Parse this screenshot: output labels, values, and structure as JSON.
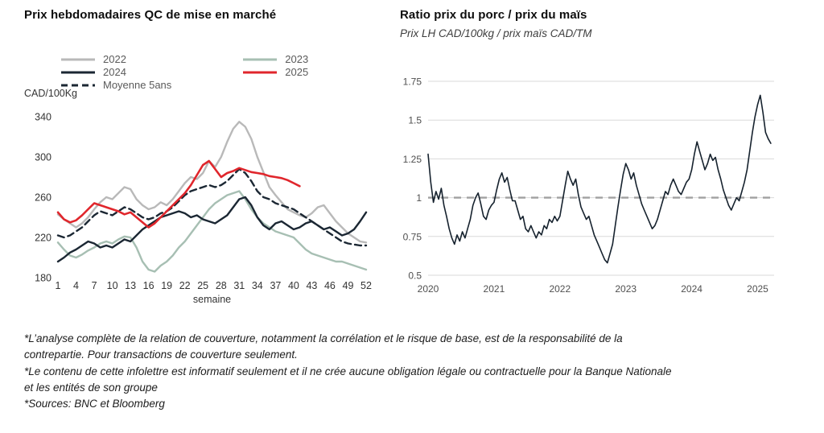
{
  "left_chart": {
    "title": "Prix hebdomadaires QC de mise en marché",
    "y_unit_label": "CAD/100Kg",
    "x_axis_label": "semaine"
  },
  "right_chart": {
    "title": "Ratio prix du porc / prix du maïs",
    "subtitle": "Prix LH CAD/100kg / prix maïs CAD/TM"
  },
  "footnotes": [
    "*L’analyse complète de la relation de couverture, notamment la corrélation et le risque de base, est de la responsabilité de la contrepartie. Pour transactions de couverture seulement.",
    "*Le contenu de cette infolettre est informatif seulement et il ne crée aucune obligation légale ou contractuelle pour la Banque Nationale et les entités de son groupe",
    "*Sources: BNC et Bloomberg"
  ],
  "colors": {
    "gray_2022": "#b9b9b9",
    "sage_2023": "#a7bfb3",
    "navy_2024": "#1b2733",
    "red_2025": "#e0262c",
    "gridline": "#dadada",
    "reference": "#a0a0a0"
  },
  "chart_data": [
    {
      "type": "line",
      "title": "Prix hebdomadaires QC de mise en marché",
      "xlabel": "semaine",
      "ylabel": "CAD/100Kg",
      "ylim": [
        180,
        340
      ],
      "yticks": [
        180,
        220,
        260,
        300,
        340
      ],
      "xlim": [
        1,
        52
      ],
      "xticks": [
        1,
        4,
        7,
        10,
        13,
        16,
        19,
        22,
        25,
        28,
        31,
        34,
        37,
        40,
        43,
        46,
        49,
        52
      ],
      "grid": false,
      "legend_position": "top",
      "legend_columns": [
        [
          "2022",
          "2024",
          "Moyenne 5ans"
        ],
        [
          "2023",
          "2025"
        ]
      ],
      "series": [
        {
          "name": "2022",
          "color": "#b9b9b9",
          "dash": null,
          "width": 2.4,
          "x_start": 1,
          "x_step": 1,
          "values": [
            243,
            238,
            234,
            230,
            234,
            240,
            248,
            255,
            260,
            258,
            264,
            270,
            268,
            258,
            252,
            248,
            250,
            255,
            252,
            258,
            266,
            274,
            280,
            278,
            284,
            296,
            290,
            300,
            315,
            328,
            335,
            330,
            318,
            300,
            285,
            270,
            262,
            255,
            248,
            245,
            242,
            240,
            244,
            250,
            252,
            244,
            236,
            230,
            224,
            220,
            216,
            215
          ]
        },
        {
          "name": "2023",
          "color": "#a7bfb3",
          "dash": null,
          "width": 2.4,
          "x_start": 1,
          "x_step": 1,
          "values": [
            215,
            208,
            202,
            200,
            203,
            207,
            210,
            214,
            216,
            214,
            218,
            221,
            220,
            210,
            196,
            188,
            186,
            192,
            196,
            202,
            210,
            216,
            224,
            232,
            240,
            248,
            254,
            258,
            262,
            264,
            266,
            258,
            248,
            240,
            234,
            230,
            226,
            224,
            222,
            220,
            214,
            208,
            204,
            202,
            200,
            198,
            196,
            196,
            194,
            192,
            190,
            188
          ]
        },
        {
          "name": "Moyenne 5ans",
          "color": "#1b2733",
          "dash": "8,5",
          "width": 2.4,
          "x_start": 1,
          "x_step": 1,
          "values": [
            222,
            220,
            222,
            226,
            230,
            236,
            242,
            246,
            244,
            242,
            246,
            250,
            248,
            244,
            240,
            238,
            240,
            244,
            246,
            250,
            256,
            262,
            266,
            268,
            270,
            272,
            270,
            272,
            276,
            282,
            288,
            284,
            276,
            266,
            260,
            258,
            254,
            252,
            250,
            248,
            244,
            240,
            236,
            232,
            228,
            224,
            220,
            216,
            214,
            213,
            212,
            212
          ]
        },
        {
          "name": "2024",
          "color": "#1b2733",
          "dash": null,
          "width": 2.4,
          "x_start": 1,
          "x_step": 1,
          "values": [
            196,
            200,
            205,
            208,
            212,
            216,
            214,
            210,
            212,
            210,
            214,
            218,
            216,
            222,
            228,
            232,
            236,
            240,
            242,
            244,
            246,
            244,
            240,
            242,
            238,
            236,
            234,
            238,
            242,
            250,
            258,
            260,
            252,
            240,
            232,
            228,
            234,
            236,
            232,
            228,
            230,
            234,
            236,
            232,
            228,
            230,
            226,
            222,
            224,
            228,
            236,
            245
          ]
        },
        {
          "name": "2025",
          "color": "#e0262c",
          "dash": null,
          "width": 2.6,
          "x_start": 1,
          "x_step": 1,
          "values": [
            245,
            238,
            235,
            237,
            242,
            248,
            254,
            252,
            250,
            248,
            246,
            243,
            245,
            240,
            235,
            230,
            234,
            240,
            246,
            252,
            258,
            264,
            272,
            282,
            292,
            296,
            288,
            280,
            284,
            286,
            289,
            287,
            285,
            284,
            283,
            281,
            280,
            279,
            277,
            274,
            271
          ]
        }
      ]
    },
    {
      "type": "line",
      "title": "Ratio prix du porc / prix du maïs",
      "subtitle": "Prix LH CAD/100kg / prix maïs CAD/TM",
      "xlabel": "",
      "ylabel": "",
      "ylim": [
        0.5,
        1.75
      ],
      "yticks": [
        0.5,
        0.75,
        1,
        1.25,
        1.5,
        1.75
      ],
      "xlim": [
        2020,
        2025.25
      ],
      "xticks": [
        2020,
        2021,
        2022,
        2023,
        2024,
        2025
      ],
      "grid": true,
      "legend_position": "none",
      "reference_line": {
        "y": 1,
        "color": "#a0a0a0",
        "dash": "9,7"
      },
      "series": [
        {
          "name": "ratio porc/maïs",
          "color": "#16222e",
          "dash": null,
          "width": 1.6,
          "x_start": 2020,
          "x_step": 0.04,
          "values": [
            1.28,
            1.1,
            0.97,
            1.04,
            0.99,
            1.06,
            0.95,
            0.88,
            0.8,
            0.74,
            0.7,
            0.76,
            0.72,
            0.78,
            0.74,
            0.8,
            0.86,
            0.95,
            1.0,
            1.03,
            0.96,
            0.88,
            0.86,
            0.92,
            0.95,
            0.97,
            1.05,
            1.12,
            1.16,
            1.1,
            1.13,
            1.05,
            0.98,
            0.98,
            0.92,
            0.86,
            0.88,
            0.8,
            0.78,
            0.82,
            0.78,
            0.74,
            0.78,
            0.76,
            0.82,
            0.8,
            0.86,
            0.84,
            0.88,
            0.85,
            0.88,
            0.98,
            1.08,
            1.17,
            1.12,
            1.08,
            1.12,
            1.02,
            0.94,
            0.9,
            0.86,
            0.88,
            0.82,
            0.76,
            0.72,
            0.68,
            0.64,
            0.6,
            0.58,
            0.64,
            0.7,
            0.82,
            0.94,
            1.05,
            1.15,
            1.22,
            1.18,
            1.12,
            1.16,
            1.08,
            1.02,
            0.96,
            0.92,
            0.88,
            0.84,
            0.8,
            0.82,
            0.86,
            0.92,
            0.98,
            1.04,
            1.02,
            1.08,
            1.12,
            1.08,
            1.04,
            1.02,
            1.06,
            1.1,
            1.12,
            1.18,
            1.28,
            1.36,
            1.3,
            1.24,
            1.18,
            1.22,
            1.28,
            1.24,
            1.26,
            1.18,
            1.12,
            1.05,
            1.0,
            0.95,
            0.92,
            0.96,
            1.0,
            0.98,
            1.04,
            1.1,
            1.18,
            1.3,
            1.42,
            1.52,
            1.6,
            1.66,
            1.55,
            1.42,
            1.38,
            1.35
          ]
        }
      ]
    }
  ]
}
